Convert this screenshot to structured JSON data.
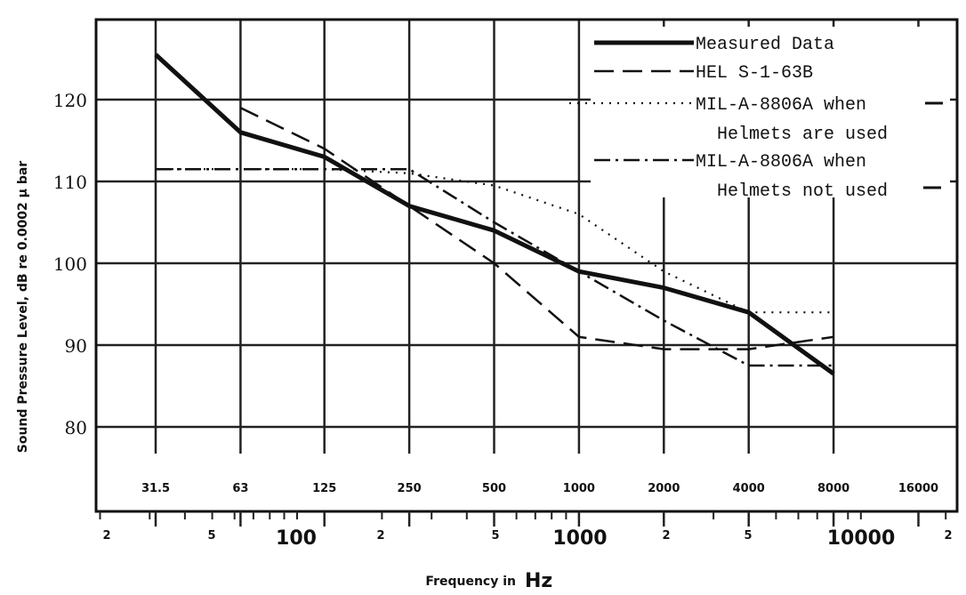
{
  "chart_data": {
    "type": "line",
    "title": "",
    "ylabel": "Sound   Pressure   Level,  dB re  0.0002  μ bar",
    "xlabel_prefix": "Frequency   in",
    "xlabel_unit": "Hz",
    "scale": "log",
    "xlim": [
      200,
      20000
    ],
    "ylim": [
      71,
      131
    ],
    "yticks": [
      80,
      90,
      100,
      110,
      120
    ],
    "octave_bands": [
      {
        "freq": 31.5,
        "label": "31.5"
      },
      {
        "freq": 63,
        "label": "63"
      },
      {
        "freq": 125,
        "label": "125"
      },
      {
        "freq": 250,
        "label": "250"
      },
      {
        "freq": 500,
        "label": "500"
      },
      {
        "freq": 1000,
        "label": "1000"
      },
      {
        "freq": 2000,
        "label": "2000"
      },
      {
        "freq": 4000,
        "label": "4000"
      },
      {
        "freq": 8000,
        "label": "8000"
      },
      {
        "freq": 16000,
        "label": "16000"
      }
    ],
    "bottom_axis_labels": [
      {
        "x": 200,
        "label": "2"
      },
      {
        "x": 500,
        "label": "5"
      },
      {
        "x": 1000,
        "label": "100"
      },
      {
        "x": 2000,
        "label": "2"
      },
      {
        "x": 5000,
        "label": "5"
      },
      {
        "x": 10000,
        "label": "1000"
      },
      {
        "x": 20000,
        "label": "2"
      },
      {
        "x": 50000,
        "label": "5"
      },
      {
        "x": 100000,
        "label": "10000"
      },
      {
        "x": 200000,
        "label": "2"
      }
    ],
    "legend_position": "top-right",
    "grid": true,
    "series": [
      {
        "name": "Measured Data",
        "style": "solid",
        "x": [
          31.5,
          63,
          125,
          250,
          500,
          1000,
          2000,
          4000,
          8000
        ],
        "y": [
          125.5,
          116,
          113,
          107,
          104,
          99,
          97,
          94,
          86.5
        ]
      },
      {
        "name": "HEL S-1-63B",
        "style": "dashed",
        "x": [
          63,
          125,
          250,
          500,
          1000,
          2000,
          4000,
          8000
        ],
        "y": [
          119,
          114,
          107,
          100,
          91,
          89.5,
          89.5,
          91
        ]
      },
      {
        "name": "MIL-A-8806A when\nHelmets are used",
        "style": "dotted",
        "x": [
          31.5,
          63,
          125,
          250,
          500,
          1000,
          2000,
          4000,
          8000
        ],
        "y": [
          111.5,
          111.5,
          111.5,
          111,
          109.5,
          106,
          99,
          94,
          94
        ]
      },
      {
        "name": "MIL-A-8806A when\nHelmets not used",
        "style": "dashdot",
        "x": [
          31.5,
          63,
          125,
          250,
          500,
          1000,
          2000,
          4000,
          8000
        ],
        "y": [
          111.5,
          111.5,
          111.5,
          111.5,
          105,
          99,
          93,
          87.5,
          87.5
        ]
      }
    ],
    "legend": [
      {
        "label": "Measured Data",
        "style": "solid"
      },
      {
        "label": "HEL S-1-63B",
        "style": "dashed"
      },
      {
        "label": "MIL-A-8806A when",
        "label2": "Helmets are used",
        "style": "dotted"
      },
      {
        "label": "MIL-A-8806A when",
        "label2": "Helmets not used",
        "style": "dashdot"
      }
    ]
  }
}
